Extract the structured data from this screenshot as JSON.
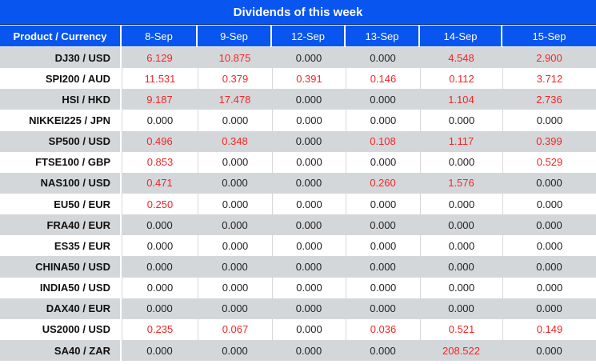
{
  "chart_data": {
    "type": "table",
    "title": "Dividends of this week",
    "columns": [
      "Product / Currency",
      "8-Sep",
      "9-Sep",
      "12-Sep",
      "13-Sep",
      "14-Sep",
      "15-Sep"
    ],
    "rows": [
      {
        "product": "DJ30 / USD",
        "values": [
          "6.129",
          "10.875",
          "0.000",
          "0.000",
          "4.548",
          "2.900"
        ]
      },
      {
        "product": "SPI200 / AUD",
        "values": [
          "11.531",
          "0.379",
          "0.391",
          "0.146",
          "0.112",
          "3.712"
        ]
      },
      {
        "product": "HSI / HKD",
        "values": [
          "9.187",
          "17.478",
          "0.000",
          "0.000",
          "1.104",
          "2.736"
        ]
      },
      {
        "product": "NIKKEI225 / JPN",
        "values": [
          "0.000",
          "0.000",
          "0.000",
          "0.000",
          "0.000",
          "0.000"
        ]
      },
      {
        "product": "SP500 / USD",
        "values": [
          "0.496",
          "0.348",
          "0.000",
          "0.108",
          "1.117",
          "0.399"
        ]
      },
      {
        "product": "FTSE100 / GBP",
        "values": [
          "0.853",
          "0.000",
          "0.000",
          "0.000",
          "0.000",
          "0.529"
        ]
      },
      {
        "product": "NAS100 / USD",
        "values": [
          "0.471",
          "0.000",
          "0.000",
          "0.260",
          "1.576",
          "0.000"
        ]
      },
      {
        "product": "EU50 / EUR",
        "values": [
          "0.250",
          "0.000",
          "0.000",
          "0.000",
          "0.000",
          "0.000"
        ]
      },
      {
        "product": "FRA40 / EUR",
        "values": [
          "0.000",
          "0.000",
          "0.000",
          "0.000",
          "0.000",
          "0.000"
        ]
      },
      {
        "product": "ES35 / EUR",
        "values": [
          "0.000",
          "0.000",
          "0.000",
          "0.000",
          "0.000",
          "0.000"
        ]
      },
      {
        "product": "CHINA50 / USD",
        "values": [
          "0.000",
          "0.000",
          "0.000",
          "0.000",
          "0.000",
          "0.000"
        ]
      },
      {
        "product": "INDIA50 / USD",
        "values": [
          "0.000",
          "0.000",
          "0.000",
          "0.000",
          "0.000",
          "0.000"
        ]
      },
      {
        "product": "DAX40 / EUR",
        "values": [
          "0.000",
          "0.000",
          "0.000",
          "0.000",
          "0.000",
          "0.000"
        ]
      },
      {
        "product": "US2000 / USD",
        "values": [
          "0.235",
          "0.067",
          "0.000",
          "0.036",
          "0.521",
          "0.149"
        ]
      },
      {
        "product": "SA40 / ZAR",
        "values": [
          "0.000",
          "0.000",
          "0.000",
          "0.000",
          "208.522",
          "0.000"
        ]
      }
    ],
    "layout_hints": {
      "striped_rows": "odd data rows gray, even rows white",
      "value_coloring": "non-zero dividend values rendered in red, zero values in black"
    }
  },
  "colors": {
    "header_blue": "#0955ef",
    "stripe_gray": "#d4d7da",
    "value_nonzero_red": "#f22626",
    "value_zero": "#212121",
    "header_text_white": "#ffffff",
    "cell_border_gray": "#d9d9d9",
    "title_divider_navy": "#0a2d7a"
  }
}
